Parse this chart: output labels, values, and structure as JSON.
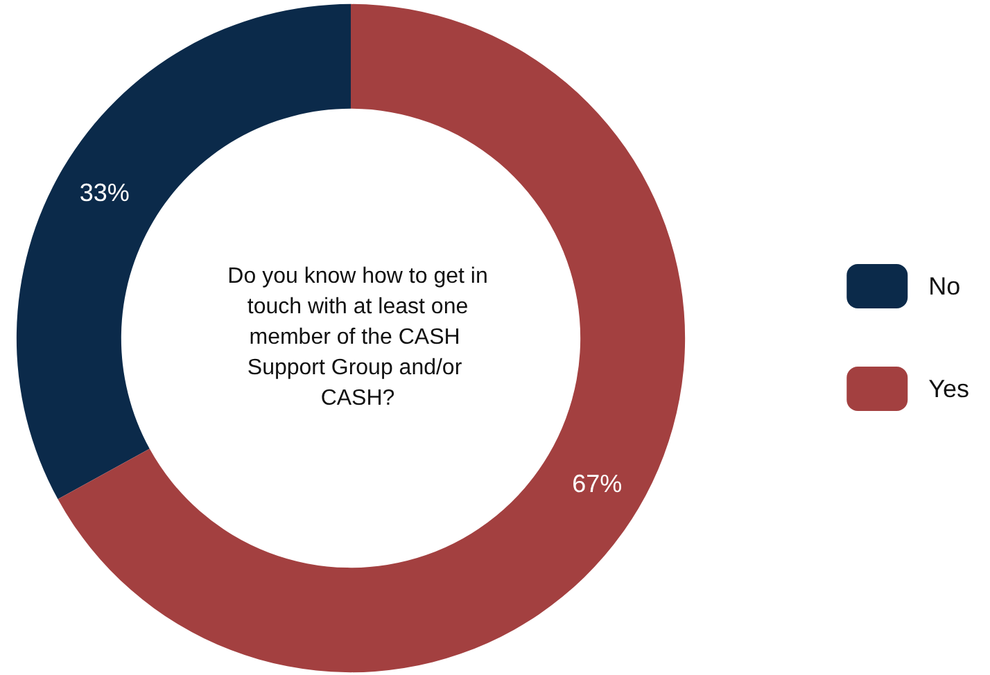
{
  "chart_data": {
    "type": "donut",
    "title": "Do you know how to get in touch with at least one member of the CASH Support Group and/or CASH?",
    "categories": [
      "No",
      "Yes"
    ],
    "values": [
      33,
      67
    ],
    "colors": [
      "#0b2a4a",
      "#a34040"
    ],
    "value_labels": [
      "33%",
      "67%"
    ],
    "legend": "right"
  }
}
